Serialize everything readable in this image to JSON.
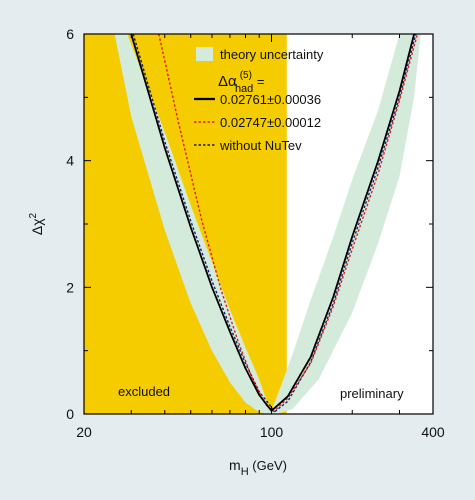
{
  "chart_data": {
    "type": "line",
    "xlabel_main": "m",
    "xlabel_sub": "H",
    "xlabel_unit": " (GeV)",
    "ylabel_main": "Δχ",
    "ylabel_sup": "2",
    "xscale": "log",
    "xlim": [
      20,
      400
    ],
    "ylim": [
      0,
      6
    ],
    "xticks": [
      20,
      100,
      400
    ],
    "yticks": [
      0,
      2,
      4,
      6
    ],
    "excluded_region": {
      "x_max": 114,
      "label": "excluded",
      "color": "#f5cc00"
    },
    "preliminary_label": "preliminary",
    "legend": {
      "uncertainty_label": "theory uncertainty",
      "header_main": "Δα",
      "header_sup": "(5)",
      "header_sub": "had",
      "header_suffix": " =",
      "entries": [
        {
          "label": "0.02761±0.00036",
          "color": "#000000",
          "style": "solid"
        },
        {
          "label": "0.02747±0.00012",
          "color": "#e02020",
          "style": "dotted"
        },
        {
          "label": "without NuTev",
          "color": "#1c1c6e",
          "style": "dotted"
        }
      ]
    },
    "band_color": "#d4ebdc",
    "series": [
      {
        "style": "solid",
        "color": "#000000",
        "x": [
          30,
          40,
          50,
          60,
          70,
          80,
          90,
          100,
          115,
          140,
          170,
          200,
          250,
          300,
          340
        ],
        "y": [
          6.0,
          4.2,
          2.95,
          2.0,
          1.3,
          0.72,
          0.3,
          0.05,
          0.28,
          0.9,
          1.85,
          2.8,
          4.0,
          5.1,
          6.0
        ]
      },
      {
        "style": "dotted",
        "color": "#e02020",
        "x": [
          38,
          45,
          55,
          65,
          75,
          85,
          95,
          102,
          115,
          140,
          170,
          200,
          250,
          300,
          350
        ],
        "y": [
          6.0,
          4.6,
          3.05,
          1.95,
          1.15,
          0.55,
          0.15,
          0.04,
          0.25,
          0.8,
          1.7,
          2.6,
          3.8,
          4.95,
          6.0
        ]
      },
      {
        "style": "dotted",
        "color": "#1c1c6e",
        "x": [
          30.5,
          40,
          50,
          60,
          70,
          80,
          90,
          103,
          115,
          140,
          170,
          200,
          250,
          300,
          345
        ],
        "y": [
          6.0,
          4.3,
          3.05,
          2.1,
          1.38,
          0.8,
          0.35,
          0.04,
          0.2,
          0.82,
          1.75,
          2.7,
          3.9,
          5.0,
          6.0
        ]
      }
    ],
    "band": {
      "upper": [
        [
          29,
          6.0
        ],
        [
          40,
          4.45
        ],
        [
          50,
          3.3
        ],
        [
          60,
          2.4
        ],
        [
          70,
          1.65
        ],
        [
          80,
          1.05
        ],
        [
          90,
          0.55
        ],
        [
          97,
          0.15
        ],
        [
          100,
          0.05
        ],
        [
          107,
          0.38
        ],
        [
          120,
          0.95
        ],
        [
          140,
          1.8
        ],
        [
          170,
          2.8
        ],
        [
          200,
          3.7
        ],
        [
          250,
          4.8
        ],
        [
          300,
          6.0
        ]
      ],
      "lower": [
        [
          26,
          6.0
        ],
        [
          30,
          4.7
        ],
        [
          40,
          2.9
        ],
        [
          50,
          1.75
        ],
        [
          60,
          1.0
        ],
        [
          70,
          0.5
        ],
        [
          80,
          0.18
        ],
        [
          90,
          0.03
        ],
        [
          97,
          0.0
        ],
        [
          105,
          0.0
        ],
        [
          120,
          0.08
        ],
        [
          150,
          0.55
        ],
        [
          200,
          1.6
        ],
        [
          250,
          2.7
        ],
        [
          300,
          3.75
        ],
        [
          340,
          5.0
        ],
        [
          360,
          6.0
        ]
      ]
    }
  }
}
